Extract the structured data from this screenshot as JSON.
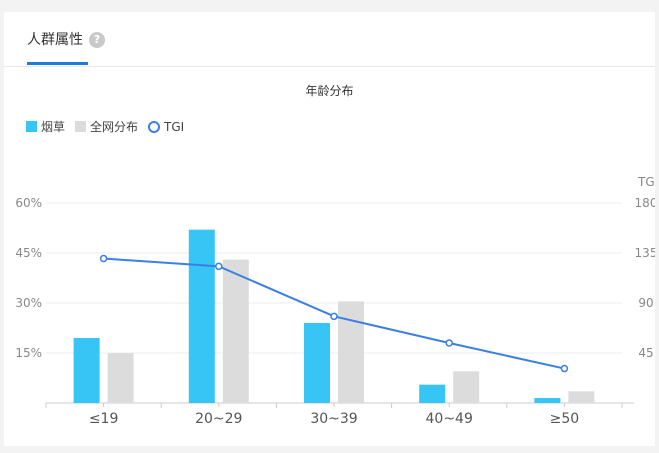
{
  "tabs": [
    {
      "label": "人群属性"
    }
  ],
  "help_icon": "?",
  "chart_data": {
    "type": "bar",
    "title": "年龄分布",
    "categories": [
      "≤19",
      "20~29",
      "30~39",
      "40~49",
      "≥50"
    ],
    "series": [
      {
        "name": "烟草",
        "type": "bar",
        "axis": "left",
        "color": "#36c5f4",
        "values": [
          19.5,
          52,
          24,
          5.5,
          1.5
        ]
      },
      {
        "name": "全网分布",
        "type": "bar",
        "axis": "left",
        "color": "#dcdcdc",
        "values": [
          15,
          43,
          30.5,
          9.5,
          3.5
        ]
      },
      {
        "name": "TGI",
        "type": "line",
        "axis": "right",
        "color": "#3a7fe6",
        "values": [
          130,
          123,
          78,
          54,
          31
        ]
      }
    ],
    "y_left": {
      "ticks": [
        "60%",
        "45%",
        "30%",
        "15%"
      ],
      "range": [
        0,
        60
      ]
    },
    "y_right": {
      "label": "TGI",
      "ticks": [
        "180",
        "135",
        "90",
        "45"
      ],
      "range": [
        0,
        180
      ]
    },
    "legend_position": "top-left",
    "grid": true
  }
}
